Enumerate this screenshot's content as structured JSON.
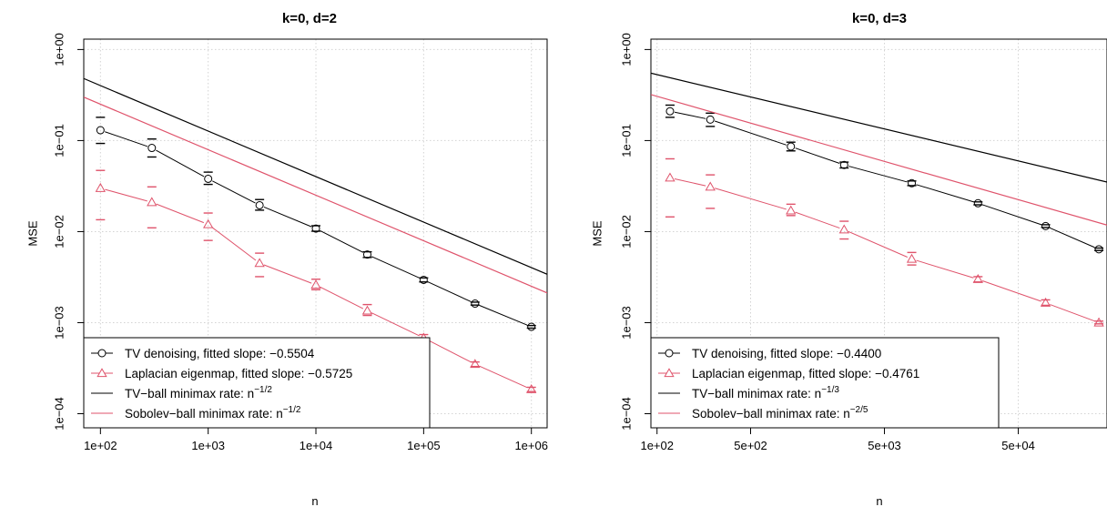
{
  "chart_data": [
    {
      "type": "line",
      "title": "k=0, d=2",
      "xlabel": "n",
      "ylabel": "MSE",
      "x_scale": "log",
      "y_scale": "log",
      "xlim": [
        70,
        1400000
      ],
      "ylim": [
        7e-05,
        1.3
      ],
      "x_ticks": [
        100,
        1000,
        10000,
        100000,
        1000000
      ],
      "x_tick_labels": [
        "1e+02",
        "1e+03",
        "1e+04",
        "1e+05",
        "1e+06"
      ],
      "y_ticks": [
        0.0001,
        0.001,
        0.01,
        0.1,
        1
      ],
      "y_tick_labels": [
        "1e−04",
        "1e−03",
        "1e−02",
        "1e−01",
        "1e+00"
      ],
      "grid": true,
      "legend_position": "bottom-left",
      "series": [
        {
          "name": "TV denoising, fitted slope: −0.5504",
          "kind": "points-errorbars",
          "color": "#000000",
          "marker": "circle",
          "x": [
            100,
            300,
            1000,
            3000,
            10000,
            30000,
            100000,
            300000,
            1000000
          ],
          "y": [
            0.13,
            0.083,
            0.038,
            0.0195,
            0.0108,
            0.0056,
            0.00295,
            0.00162,
            0.0009
          ],
          "y_low": [
            0.093,
            0.066,
            0.033,
            0.0172,
            0.0101,
            0.0052,
            0.0028,
            0.00156,
            0.00087
          ],
          "y_high": [
            0.18,
            0.104,
            0.045,
            0.0225,
            0.0116,
            0.006,
            0.0031,
            0.00168,
            0.00093
          ]
        },
        {
          "name": "Laplacian eigenmap, fitted slope: −0.5725",
          "kind": "points-errorbars",
          "color": "#DF536B",
          "marker": "triangle",
          "x": [
            100,
            300,
            1000,
            3000,
            10000,
            30000,
            100000,
            300000,
            1000000
          ],
          "y": [
            0.03,
            0.021,
            0.012,
            0.0045,
            0.0026,
            0.00135,
            0.00068,
            0.00035,
            0.000185
          ],
          "y_low": [
            0.0135,
            0.011,
            0.008,
            0.0032,
            0.0023,
            0.0012,
            0.00062,
            0.00033,
            0.000175
          ],
          "y_high": [
            0.047,
            0.031,
            0.016,
            0.0058,
            0.003,
            0.00158,
            0.00074,
            0.00037,
            0.000195
          ]
        },
        {
          "name": "TV−ball minimax rate: n",
          "name_sup": "−1/2",
          "kind": "line",
          "color": "#000000",
          "x": [
            70,
            1400000
          ],
          "y": [
            0.48,
            0.0034
          ]
        },
        {
          "name": "Sobolev−ball minimax rate: n",
          "name_sup": "−1/2",
          "kind": "line",
          "color": "#DF536B",
          "x": [
            70,
            1400000
          ],
          "y": [
            0.3,
            0.00212
          ]
        }
      ]
    },
    {
      "type": "line",
      "title": "k=0, d=3",
      "xlabel": "n",
      "ylabel": "MSE",
      "x_scale": "log",
      "y_scale": "log",
      "xlim": [
        90,
        230000
      ],
      "ylim": [
        7e-05,
        1.3
      ],
      "x_ticks": [
        100,
        500,
        5000,
        50000
      ],
      "x_tick_labels": [
        "1e+02",
        "5e+02",
        "5e+03",
        "5e+04"
      ],
      "y_ticks": [
        0.0001,
        0.001,
        0.01,
        0.1,
        1
      ],
      "y_tick_labels": [
        "1e−04",
        "1e−03",
        "1e−02",
        "1e−01",
        "1e+00"
      ],
      "grid": true,
      "legend_position": "bottom-left",
      "series": [
        {
          "name": "TV denoising, fitted slope: −0.4400",
          "kind": "points-errorbars",
          "color": "#000000",
          "marker": "circle",
          "x": [
            125,
            250,
            1000,
            2500,
            8000,
            25000,
            80000,
            200000
          ],
          "y": [
            0.21,
            0.17,
            0.086,
            0.054,
            0.034,
            0.0205,
            0.0115,
            0.0064
          ],
          "y_low": [
            0.18,
            0.143,
            0.077,
            0.05,
            0.032,
            0.0197,
            0.0111,
            0.0062
          ],
          "y_high": [
            0.245,
            0.2,
            0.096,
            0.058,
            0.036,
            0.0212,
            0.0119,
            0.0066
          ]
        },
        {
          "name": "Laplacian eigenmap, fitted slope: −0.4761",
          "kind": "points-errorbars",
          "color": "#DF536B",
          "marker": "triangle",
          "x": [
            125,
            250,
            1000,
            2500,
            8000,
            25000,
            80000,
            200000
          ],
          "y": [
            0.039,
            0.031,
            0.017,
            0.0105,
            0.005,
            0.003,
            0.00165,
            0.001
          ],
          "y_low": [
            0.0145,
            0.018,
            0.015,
            0.0083,
            0.0043,
            0.0028,
            0.00155,
            0.00097
          ],
          "y_high": [
            0.063,
            0.042,
            0.02,
            0.013,
            0.0059,
            0.0032,
            0.00178,
            0.00104
          ]
        },
        {
          "name": "TV−ball minimax rate: n",
          "name_sup": "−1/3",
          "kind": "line",
          "color": "#000000",
          "x": [
            90,
            230000
          ],
          "y": [
            0.55,
            0.035
          ]
        },
        {
          "name": "Sobolev−ball minimax rate: n",
          "name_sup": "−2/5",
          "kind": "line",
          "color": "#DF536B",
          "x": [
            90,
            230000
          ],
          "y": [
            0.32,
            0.0118
          ]
        }
      ]
    }
  ]
}
